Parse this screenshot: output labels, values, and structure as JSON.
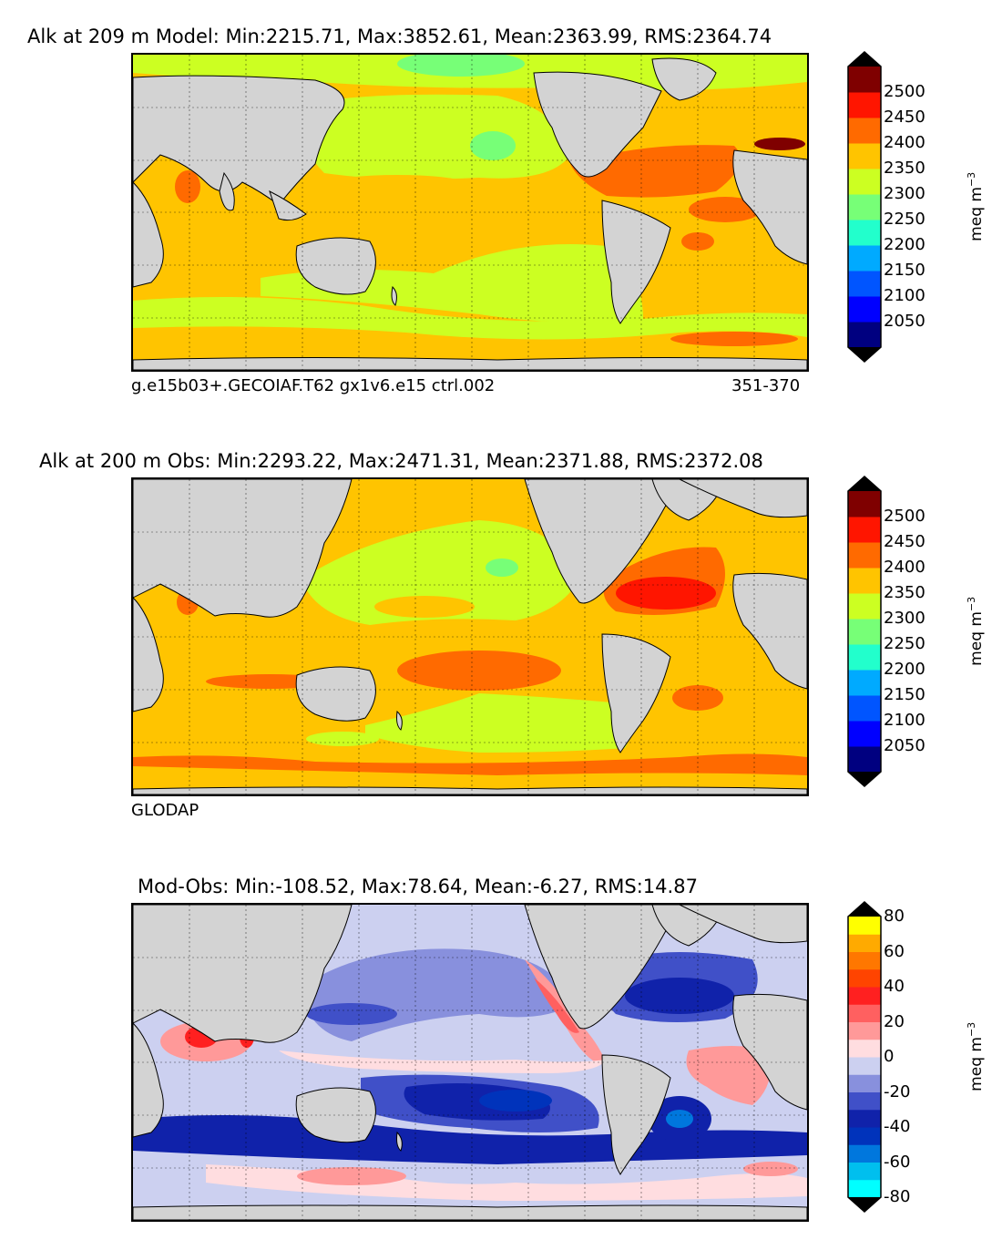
{
  "chart_data": [
    {
      "type": "map",
      "title": "Alk at 209 m Model: Min:2215.71, Max:3852.61, Mean:2363.99, RMS:2364.74",
      "caption_left": "g.e15b03+.GECOIAF.T62 gx1v6.e15 ctrl.002",
      "caption_right": "351-370",
      "stats": {
        "min": 2215.71,
        "max": 3852.61,
        "mean": 2363.99,
        "rms": 2364.74
      },
      "colorbar": {
        "label_base": "meq m",
        "label_exp": "−3",
        "levels": [
          2000,
          2050,
          2100,
          2150,
          2200,
          2250,
          2300,
          2350,
          2400,
          2450,
          2500,
          2550
        ],
        "tick_labels": [
          "2050",
          "2100",
          "2150",
          "2200",
          "2250",
          "2300",
          "2350",
          "2400",
          "2450",
          "2500"
        ],
        "colors": [
          "#000080",
          "#0000ff",
          "#0055ff",
          "#00aaff",
          "#22ffcc",
          "#77ff77",
          "#ccff22",
          "#ffc400",
          "#ff6a00",
          "#ff1500",
          "#7f0000"
        ],
        "extend": "both"
      }
    },
    {
      "type": "map",
      "title": "Alk at 200 m Obs: Min:2293.22, Max:2471.31, Mean:2371.88, RMS:2372.08",
      "caption_left": "GLODAP",
      "stats": {
        "min": 2293.22,
        "max": 2471.31,
        "mean": 2371.88,
        "rms": 2372.08
      },
      "colorbar": {
        "label_base": "meq m",
        "label_exp": "−3",
        "levels": [
          2000,
          2050,
          2100,
          2150,
          2200,
          2250,
          2300,
          2350,
          2400,
          2450,
          2500,
          2550
        ],
        "tick_labels": [
          "2050",
          "2100",
          "2150",
          "2200",
          "2250",
          "2300",
          "2350",
          "2400",
          "2450",
          "2500"
        ],
        "colors": [
          "#000080",
          "#0000ff",
          "#0055ff",
          "#00aaff",
          "#22ffcc",
          "#77ff77",
          "#ccff22",
          "#ffc400",
          "#ff6a00",
          "#ff1500",
          "#7f0000"
        ],
        "extend": "both"
      }
    },
    {
      "type": "map",
      "title": "Mod-Obs: Min:-108.52, Max:78.64, Mean:-6.27, RMS:14.87",
      "stats": {
        "min": -108.52,
        "max": 78.64,
        "mean": -6.27,
        "rms": 14.87
      },
      "colorbar": {
        "label_base": "meq m",
        "label_exp": "−3",
        "levels": [
          -80,
          -70,
          -60,
          -50,
          -40,
          -30,
          -20,
          -10,
          0,
          10,
          20,
          30,
          40,
          50,
          60,
          70,
          80
        ],
        "tick_labels": [
          "-80",
          "-60",
          "-40",
          "-20",
          "0",
          "20",
          "40",
          "60",
          "80"
        ],
        "colors": [
          "#00ffff",
          "#00bfee",
          "#0077dd",
          "#0033bb",
          "#1022aa",
          "#4050c8",
          "#8890dd",
          "#ccd0f0",
          "#ffdde0",
          "#ff9999",
          "#ff6060",
          "#ff2020",
          "#ff4400",
          "#ff7700",
          "#ffaa00",
          "#ffff00"
        ],
        "extend": "both"
      }
    }
  ]
}
